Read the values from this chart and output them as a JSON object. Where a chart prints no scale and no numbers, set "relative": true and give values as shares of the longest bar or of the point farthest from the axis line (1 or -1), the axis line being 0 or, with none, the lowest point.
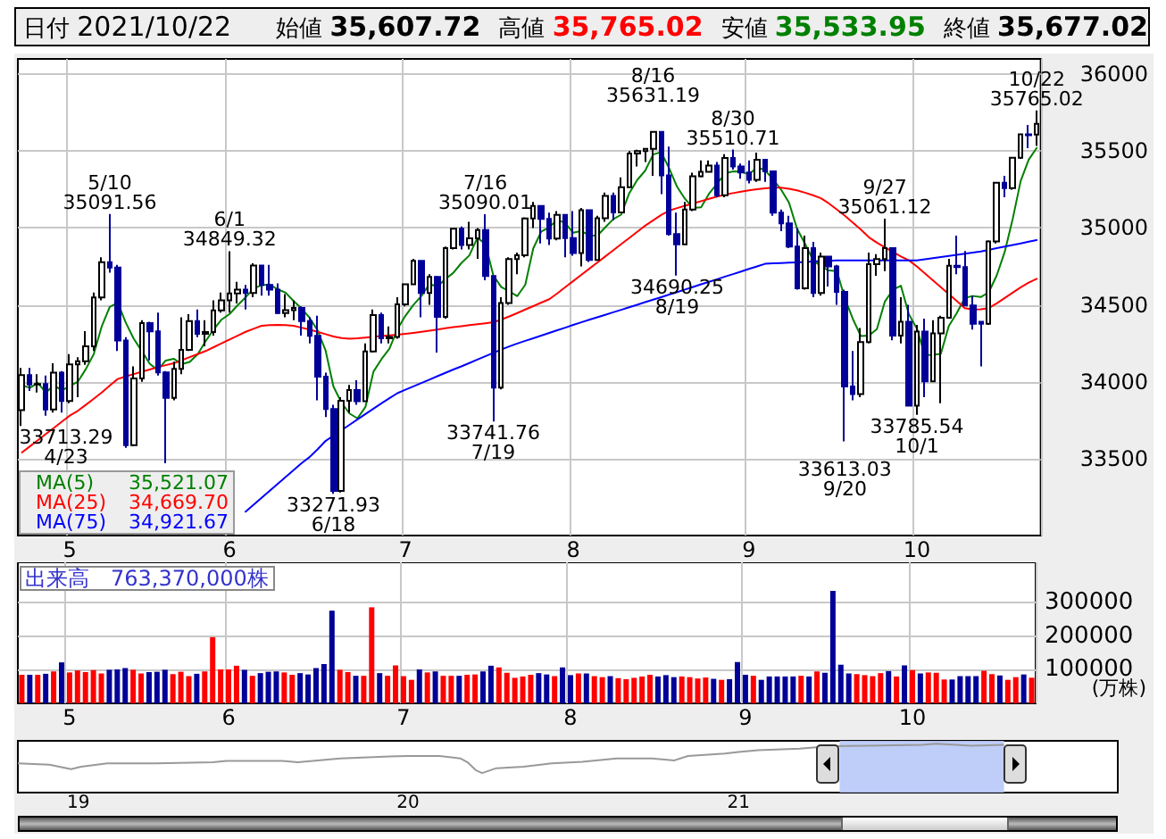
{
  "chart_data": [
    {
      "type": "candlestick",
      "categories": [
        null,
        null,
        null,
        null,
        null,
        null,
        "5",
        null,
        null,
        null,
        null,
        null,
        null,
        null,
        null,
        null,
        null,
        null,
        null,
        null,
        null,
        null,
        null,
        null,
        null,
        null,
        "6",
        null,
        null,
        null,
        null,
        null,
        null,
        null,
        null,
        null,
        null,
        null,
        null,
        null,
        null,
        null,
        null,
        null,
        null,
        null,
        null,
        null,
        "7",
        null,
        null,
        null,
        null,
        null,
        null,
        null,
        null,
        null,
        null,
        null,
        null,
        null,
        null,
        null,
        null,
        null,
        null,
        null,
        null,
        "8",
        null,
        null,
        null,
        null,
        null,
        null,
        null,
        null,
        null,
        null,
        null,
        null,
        null,
        null,
        null,
        null,
        null,
        null,
        null,
        null,
        null,
        "9",
        null,
        null,
        null,
        null,
        null,
        null,
        null,
        null,
        null,
        null,
        null,
        null,
        null,
        null,
        null,
        null,
        null,
        null,
        null,
        null,
        "10",
        null,
        null,
        null,
        null,
        null,
        null,
        null,
        null,
        null,
        null,
        null,
        null,
        null,
        null,
        null
      ],
      "ohlc": [
        [
          33816,
          34090,
          33713.29,
          34043
        ],
        [
          34043,
          34090,
          33940,
          33982
        ],
        [
          33982,
          34050,
          33930,
          33985
        ],
        [
          33985,
          34040,
          33780,
          33820
        ],
        [
          33820,
          34120,
          33800,
          34060
        ],
        [
          34060,
          34070,
          33800,
          33875
        ],
        [
          33875,
          34180,
          33860,
          34113
        ],
        [
          34113,
          34160,
          33900,
          34133
        ],
        [
          34133,
          34330,
          34110,
          34230
        ],
        [
          34230,
          34580,
          34200,
          34549
        ],
        [
          34549,
          34810,
          34530,
          34778
        ],
        [
          34778,
          35091.56,
          34710,
          34743
        ],
        [
          34743,
          34760,
          34200,
          34269
        ],
        [
          34269,
          34290,
          33570,
          33588
        ],
        [
          33588,
          34100,
          33580,
          34021
        ],
        [
          34021,
          34400,
          34000,
          34382
        ],
        [
          34382,
          34390,
          34140,
          34328
        ],
        [
          34328,
          34450,
          34040,
          34061
        ],
        [
          34061,
          34070,
          33470,
          33896
        ],
        [
          33896,
          34130,
          33880,
          34084
        ],
        [
          34084,
          34420,
          34050,
          34208
        ],
        [
          34208,
          34440,
          34200,
          34394
        ],
        [
          34394,
          34470,
          34290,
          34312
        ],
        [
          34312,
          34400,
          34230,
          34323
        ],
        [
          34323,
          34530,
          34300,
          34465
        ],
        [
          34465,
          34580,
          34450,
          34529
        ],
        [
          34529,
          34849.32,
          34450,
          34575
        ],
        [
          34575,
          34650,
          34510,
          34600
        ],
        [
          34600,
          34630,
          34470,
          34577
        ],
        [
          34577,
          34770,
          34550,
          34756
        ],
        [
          34756,
          34760,
          34560,
          34630
        ],
        [
          34630,
          34760,
          34560,
          34600
        ],
        [
          34600,
          34640,
          34440,
          34447
        ],
        [
          34447,
          34570,
          34420,
          34466
        ],
        [
          34466,
          34530,
          34400,
          34480
        ],
        [
          34480,
          34490,
          34300,
          34394
        ],
        [
          34394,
          34420,
          34250,
          34299
        ],
        [
          34299,
          34430,
          33880,
          34034
        ],
        [
          34034,
          34060,
          33770,
          33823
        ],
        [
          33823,
          33850,
          33271.93,
          33290
        ],
        [
          33290,
          33900,
          33280,
          33877
        ],
        [
          33877,
          33980,
          33800,
          33946
        ],
        [
          33946,
          34010,
          33850,
          33874
        ],
        [
          33874,
          34250,
          33870,
          34197
        ],
        [
          34197,
          34470,
          34190,
          34434
        ],
        [
          34434,
          34450,
          34250,
          34283
        ],
        [
          34283,
          34360,
          34250,
          34292
        ],
        [
          34292,
          34550,
          34280,
          34503
        ],
        [
          34503,
          34640,
          34490,
          34634
        ],
        [
          34634,
          34800,
          34630,
          34786
        ],
        [
          34786,
          34790,
          34420,
          34577
        ],
        [
          34577,
          34700,
          34500,
          34682
        ],
        [
          34682,
          34690,
          34190,
          34422
        ],
        [
          34422,
          34880,
          34410,
          34870
        ],
        [
          34870,
          35000,
          34860,
          34996
        ],
        [
          34996,
          35010,
          34860,
          34889
        ],
        [
          34889,
          35040,
          34860,
          34933
        ],
        [
          34933,
          35000,
          34800,
          34987
        ],
        [
          34987,
          35090.01,
          34660,
          34688
        ],
        [
          34688,
          34690,
          33741.76,
          33962
        ],
        [
          33962,
          34550,
          33950,
          34512
        ],
        [
          34512,
          34810,
          34500,
          34798
        ],
        [
          34798,
          34840,
          34700,
          34823
        ],
        [
          34823,
          35070,
          34810,
          35062
        ],
        [
          35062,
          35170,
          35000,
          35144
        ],
        [
          35144,
          35150,
          34900,
          35059
        ],
        [
          35059,
          35100,
          34890,
          34931
        ],
        [
          34931,
          35110,
          34920,
          35085
        ],
        [
          35085,
          35090,
          34810,
          34935
        ],
        [
          34935,
          35110,
          34820,
          34838
        ],
        [
          34838,
          35130,
          34750,
          35116
        ],
        [
          35116,
          35120,
          34780,
          34793
        ],
        [
          34793,
          35080,
          34790,
          35064
        ],
        [
          35064,
          35230,
          35040,
          35209
        ],
        [
          35209,
          35230,
          35050,
          35102
        ],
        [
          35102,
          35330,
          35100,
          35265
        ],
        [
          35265,
          35500,
          35260,
          35485
        ],
        [
          35485,
          35510,
          35400,
          35500
        ],
        [
          35500,
          35520,
          35430,
          35515
        ],
        [
          35515,
          35631.19,
          35340,
          35625
        ],
        [
          35625,
          35630,
          35220,
          35343
        ],
        [
          35343,
          35530,
          34950,
          34961
        ],
        [
          34961,
          35100,
          34690.25,
          34894
        ],
        [
          34894,
          35170,
          34890,
          35120
        ],
        [
          35120,
          35360,
          35110,
          35336
        ],
        [
          35336,
          35440,
          35330,
          35366
        ],
        [
          35366,
          35440,
          35360,
          35406
        ],
        [
          35406,
          35430,
          35200,
          35213
        ],
        [
          35213,
          35480,
          35200,
          35456
        ],
        [
          35456,
          35510.71,
          35380,
          35400
        ],
        [
          35400,
          35420,
          35320,
          35361
        ],
        [
          35361,
          35440,
          35290,
          35313
        ],
        [
          35313,
          35490,
          35300,
          35444
        ],
        [
          35444,
          35450,
          35300,
          35369
        ],
        [
          35369,
          35370,
          35080,
          35100
        ],
        [
          35100,
          35120,
          34980,
          35031
        ],
        [
          35031,
          35080,
          34870,
          34879
        ],
        [
          34879,
          35000,
          34600,
          34608
        ],
        [
          34608,
          34950,
          34600,
          34870
        ],
        [
          34870,
          34910,
          34550,
          34578
        ],
        [
          34578,
          34840,
          34560,
          34814
        ],
        [
          34814,
          34820,
          34620,
          34751
        ],
        [
          34751,
          34760,
          34500,
          34585
        ],
        [
          34585,
          34600,
          33613.03,
          33970
        ],
        [
          33970,
          34200,
          33880,
          33920
        ],
        [
          33920,
          34350,
          33900,
          34258
        ],
        [
          34258,
          34840,
          34250,
          34765
        ],
        [
          34765,
          34830,
          34690,
          34798
        ],
        [
          34798,
          35061.12,
          34720,
          34869
        ],
        [
          34869,
          34870,
          34270,
          34300
        ],
        [
          34300,
          34550,
          34250,
          34391
        ],
        [
          34391,
          34500,
          33840,
          33844
        ],
        [
          33844,
          34370,
          33785.54,
          34326
        ],
        [
          34326,
          34410,
          33900,
          34003
        ],
        [
          34003,
          34400,
          34000,
          34315
        ],
        [
          34315,
          34430,
          33860,
          34417
        ],
        [
          34417,
          34800,
          34410,
          34755
        ],
        [
          34755,
          34950,
          34700,
          34746
        ],
        [
          34746,
          34850,
          34490,
          34496
        ],
        [
          34496,
          34560,
          34340,
          34378
        ],
        [
          34390,
          34390,
          34100,
          34378
        ],
        [
          34378,
          34920,
          34370,
          34913
        ],
        [
          34913,
          35300,
          34900,
          35295
        ],
        [
          35295,
          35340,
          35200,
          35259
        ],
        [
          35259,
          35460,
          35250,
          35457
        ],
        [
          35457,
          35610,
          35450,
          35609
        ],
        [
          35609,
          35670,
          35520,
          35603
        ],
        [
          35607.72,
          35765.02,
          35533.95,
          35677.02
        ]
      ],
      "colors": [
        "#ffffff",
        "#000099",
        "#ffffff",
        "#000099",
        "#ffffff",
        "#000099",
        "#ffffff",
        "#ffffff",
        "#ffffff",
        "#ffffff",
        "#ffffff",
        "#000099",
        "#000099",
        "#000099",
        "#ffffff",
        "#ffffff",
        "#000099",
        "#000099",
        "#000099",
        "#ffffff",
        "#ffffff",
        "#ffffff",
        "#000099",
        "#ffffff",
        "#ffffff",
        "#ffffff",
        "#ffffff",
        "#ffffff",
        "#000099",
        "#ffffff",
        "#000099",
        "#000099",
        "#000099",
        "#ffffff",
        "#ffffff",
        "#000099",
        "#000099",
        "#000099",
        "#000099",
        "#000099",
        "#ffffff",
        "#ffffff",
        "#000099",
        "#ffffff",
        "#ffffff",
        "#000099",
        "#ffffff",
        "#ffffff",
        "#ffffff",
        "#ffffff",
        "#000099",
        "#ffffff",
        "#000099",
        "#ffffff",
        "#ffffff",
        "#000099",
        "#ffffff",
        "#ffffff",
        "#000099",
        "#000099",
        "#ffffff",
        "#ffffff",
        "#ffffff",
        "#ffffff",
        "#ffffff",
        "#000099",
        "#000099",
        "#ffffff",
        "#000099",
        "#000099",
        "#ffffff",
        "#000099",
        "#ffffff",
        "#ffffff",
        "#000099",
        "#ffffff",
        "#ffffff",
        "#ffffff",
        "#ffffff",
        "#ffffff",
        "#000099",
        "#000099",
        "#000099",
        "#ffffff",
        "#ffffff",
        "#ffffff",
        "#ffffff",
        "#000099",
        "#ffffff",
        "#000099",
        "#000099",
        "#000099",
        "#ffffff",
        "#000099",
        "#000099",
        "#000099",
        "#000099",
        "#000099",
        "#ffffff",
        "#000099",
        "#ffffff",
        "#000099",
        "#000099",
        "#000099",
        "#000099",
        "#ffffff",
        "#ffffff",
        "#ffffff",
        "#ffffff",
        "#000099",
        "#ffffff",
        "#000099",
        "#ffffff",
        "#000099",
        "#ffffff",
        "#ffffff",
        "#ffffff",
        "#000099",
        "#000099",
        "#000099",
        "#000099",
        "#ffffff",
        "#ffffff",
        "#000099",
        "#ffffff",
        "#ffffff",
        "#000099",
        "#ffffff"
      ],
      "series": [
        {
          "type": "line",
          "name": "MA(5) 35,521.07",
          "color": "#008000",
          "values": [
            33979,
            33960,
            33993,
            33929,
            33978,
            33944,
            33971,
            34000,
            34082,
            34180,
            34361,
            34487,
            34514,
            34385,
            34280,
            34201,
            34118,
            34076,
            34138,
            34150,
            34115,
            34129,
            34179,
            34264,
            34340,
            34405,
            34441,
            34498,
            34549,
            34607,
            34628,
            34633,
            34602,
            34580,
            34525,
            34477,
            34417,
            34335,
            34206,
            33968,
            33865,
            33794,
            33762,
            33837,
            34066,
            34147,
            34216,
            34342,
            34429,
            34500,
            34558,
            34636,
            34620,
            34667,
            34709,
            34772,
            34822,
            34935,
            34899,
            34692,
            34616,
            34589,
            34557,
            34631,
            34868,
            34977,
            35004,
            35056,
            35031,
            34970,
            34981,
            34953,
            34949,
            35004,
            35057,
            35087,
            35225,
            35312,
            35373,
            35478,
            35494,
            35389,
            35268,
            35189,
            35131,
            35135,
            35224,
            35288,
            35355,
            35368,
            35367,
            35349,
            35395,
            35377,
            35317,
            35251,
            35165,
            34997,
            34898,
            34793,
            34750,
            34724,
            34720,
            34540,
            34408,
            34297,
            34300,
            34342,
            34522,
            34598,
            34625,
            34440,
            34346,
            34173,
            34176,
            34181,
            34363,
            34447,
            34546,
            34558,
            34551,
            34582,
            34692,
            34845,
            35060,
            35307,
            35445,
            35521.07
          ]
        },
        {
          "type": "line",
          "name": "MA(25) 34,669.70",
          "color": "#ff0000",
          "values": [
            33540,
            33580,
            33620,
            33660,
            33700,
            33740,
            33780,
            33811,
            33850,
            33890,
            33930,
            33975,
            34018,
            34035,
            34050,
            34065,
            34080,
            34095,
            34108,
            34120,
            34140,
            34160,
            34180,
            34200,
            34225,
            34250,
            34275,
            34300,
            34325,
            34345,
            34364,
            34368,
            34370,
            34368,
            34364,
            34352,
            34340,
            34325,
            34310,
            34295,
            34285,
            34280,
            34283,
            34288,
            34293,
            34298,
            34302,
            34306,
            34312,
            34318,
            34325,
            34332,
            34340,
            34348,
            34355,
            34362,
            34368,
            34374,
            34380,
            34387,
            34405,
            34425,
            34447,
            34470,
            34492,
            34515,
            34537,
            34575,
            34615,
            34655,
            34695,
            34735,
            34775,
            34815,
            34855,
            34895,
            34935,
            34975,
            35015,
            35050,
            35085,
            35113,
            35130,
            35145,
            35160,
            35175,
            35190,
            35205,
            35217,
            35227,
            35236,
            35245,
            35252,
            35258,
            35263,
            35262,
            35255,
            35245,
            35230,
            35213,
            35194,
            35160,
            35120,
            35080,
            35035,
            34990,
            34940,
            34905,
            34875,
            34845,
            34815,
            34790,
            34750,
            34705,
            34660,
            34615,
            34570,
            34525,
            34479,
            34470,
            34472,
            34479,
            34510,
            34545,
            34580,
            34615,
            34645,
            34669.7
          ]
        },
        {
          "type": "line",
          "name": "MA(75) 34,921.67",
          "color": "#0000ff",
          "values": [
            null,
            null,
            null,
            null,
            null,
            null,
            null,
            null,
            null,
            null,
            null,
            null,
            null,
            null,
            null,
            null,
            null,
            null,
            null,
            null,
            null,
            null,
            null,
            null,
            null,
            null,
            null,
            null,
            33155,
            33200,
            33245,
            33290,
            33335,
            33380,
            33425,
            33470,
            33510,
            33560,
            33615,
            33650,
            33685,
            33720,
            33755,
            33790,
            33825,
            33860,
            33893,
            33926,
            33948,
            33970,
            33992,
            34014,
            34036,
            34058,
            34080,
            34100,
            34122,
            34144,
            34166,
            34188,
            34210,
            34230,
            34249,
            34266,
            34283,
            34300,
            34318,
            34335,
            34352,
            34370,
            34387,
            34403,
            34419,
            34435,
            34452,
            34468,
            34485,
            34501,
            34518,
            34534,
            34550,
            34567,
            34583,
            34600,
            34617,
            34634,
            34650,
            34667,
            34684,
            34700,
            34717,
            34734,
            34750,
            34767,
            34770,
            34772,
            34775,
            34777,
            34780,
            34782,
            34785,
            34787,
            34790,
            34790,
            34790,
            34790,
            34790,
            34790,
            34790,
            34790,
            34790,
            34790,
            34790,
            34797,
            34804,
            34811,
            34819,
            34826,
            34833,
            34840,
            34848,
            34858,
            34869,
            34880,
            34890,
            34900,
            34911,
            34921.67
          ]
        }
      ],
      "ylim": [
        33000,
        36100
      ],
      "yticks": [
        33500,
        34000,
        34500,
        35000,
        35500,
        36000
      ],
      "grid": true,
      "legend": "bottom left",
      "marker": "none",
      "annotations": [
        "日付 2021/10/22",
        "始値 35,607.72",
        "高値 35,765.02",
        "安値 35,533.95",
        "終値 35,677.02",
        {
          "text": "33713.29\n4/23",
          "y": 33713.29
        },
        {
          "text": "5/10\n35091.56",
          "y": 35091.56
        },
        {
          "text": "6/1\n34849.32",
          "y": 34849.32
        },
        {
          "text": "33271.93\n6/18",
          "y": 33271.93
        },
        {
          "text": "7/16\n35090.01",
          "y": 35090.01
        },
        {
          "text": "33741.76\n7/19",
          "y": 33741.76
        },
        {
          "text": "8/16\n35631.19",
          "y": 35631.19
        },
        {
          "text": "34690.25\n8/19",
          "y": 34690.25
        },
        {
          "text": "8/30\n35510.71",
          "y": 35510.71
        },
        {
          "text": "33613.03\n9/20",
          "y": 33613.03
        },
        {
          "text": "9/27\n35061.12",
          "y": 35061.12
        },
        {
          "text": "33785.54\n10/1",
          "y": 33785.54
        },
        {
          "text": "10/22\n35765.02",
          "y": 35765.02
        }
      ]
    },
    {
      "type": "bar",
      "title": "出来高　763,370,000株",
      "ylabel": "(万株)",
      "categories": [
        null,
        null,
        null,
        null,
        null,
        null,
        "5",
        null,
        null,
        null,
        null,
        null,
        null,
        null,
        null,
        null,
        null,
        null,
        null,
        null,
        null,
        null,
        null,
        null,
        null,
        null,
        "6",
        null,
        null,
        null,
        null,
        null,
        null,
        null,
        null,
        null,
        null,
        null,
        null,
        null,
        null,
        null,
        null,
        null,
        null,
        null,
        null,
        null,
        "7",
        null,
        null,
        null,
        null,
        null,
        null,
        null,
        null,
        null,
        null,
        null,
        null,
        null,
        null,
        null,
        null,
        null,
        null,
        null,
        null,
        "8",
        null,
        null,
        null,
        null,
        null,
        null,
        null,
        null,
        null,
        null,
        null,
        null,
        null,
        null,
        null,
        null,
        null,
        null,
        null,
        null,
        null,
        "9",
        null,
        null,
        null,
        null,
        null,
        null,
        null,
        null,
        null,
        null,
        null,
        null,
        null,
        null,
        null,
        null,
        null,
        null,
        null,
        null,
        "10",
        null,
        null,
        null,
        null,
        null,
        null,
        null,
        null,
        null,
        null,
        null,
        null,
        null,
        null,
        null
      ],
      "values": [
        85000,
        85000,
        85000,
        88000,
        95000,
        122000,
        92000,
        98000,
        93000,
        99000,
        89000,
        100000,
        101000,
        105000,
        100000,
        89000,
        93000,
        94000,
        100000,
        87000,
        94000,
        81000,
        88000,
        95000,
        197000,
        101000,
        101000,
        112000,
        100000,
        82000,
        90000,
        94000,
        95000,
        92000,
        85000,
        90000,
        86000,
        105000,
        117000,
        276000,
        100000,
        93000,
        82000,
        82000,
        286000,
        90000,
        82000,
        113000,
        81000,
        70000,
        101000,
        92000,
        95000,
        82000,
        82000,
        82000,
        85000,
        86000,
        95000,
        112000,
        107000,
        91000,
        76000,
        80000,
        85000,
        90000,
        86000,
        81000,
        107000,
        84000,
        89000,
        89000,
        81000,
        78000,
        81000,
        75000,
        72000,
        76000,
        80000,
        85000,
        80000,
        84000,
        78000,
        80000,
        78000,
        74000,
        77000,
        73000,
        70000,
        72000,
        123000,
        85000,
        82000,
        70000,
        80000,
        80000,
        80000,
        80000,
        82000,
        80000,
        95000,
        91000,
        335000,
        115000,
        89000,
        87000,
        84000,
        81000,
        90000,
        96000,
        80000,
        113000,
        99000,
        89000,
        92000,
        91000,
        71000,
        71000,
        81000,
        81000,
        81000,
        97000,
        87000,
        83000,
        70000,
        78000,
        86000,
        76337
      ],
      "colors": [
        "#ff0000",
        "#000099",
        "#ff0000",
        "#000099",
        "#ff0000",
        "#000099",
        "#ff0000",
        "#ff0000",
        "#ff0000",
        "#ff0000",
        "#ff0000",
        "#000099",
        "#000099",
        "#000099",
        "#ff0000",
        "#ff0000",
        "#000099",
        "#000099",
        "#000099",
        "#ff0000",
        "#ff0000",
        "#ff0000",
        "#000099",
        "#ff0000",
        "#ff0000",
        "#ff0000",
        "#ff0000",
        "#ff0000",
        "#000099",
        "#ff0000",
        "#000099",
        "#000099",
        "#000099",
        "#ff0000",
        "#ff0000",
        "#000099",
        "#000099",
        "#000099",
        "#000099",
        "#000099",
        "#ff0000",
        "#ff0000",
        "#000099",
        "#ff0000",
        "#ff0000",
        "#000099",
        "#ff0000",
        "#ff0000",
        "#ff0000",
        "#ff0000",
        "#000099",
        "#ff0000",
        "#000099",
        "#ff0000",
        "#ff0000",
        "#000099",
        "#ff0000",
        "#ff0000",
        "#000099",
        "#000099",
        "#ff0000",
        "#ff0000",
        "#ff0000",
        "#ff0000",
        "#ff0000",
        "#000099",
        "#000099",
        "#ff0000",
        "#000099",
        "#000099",
        "#ff0000",
        "#000099",
        "#ff0000",
        "#ff0000",
        "#000099",
        "#ff0000",
        "#ff0000",
        "#ff0000",
        "#ff0000",
        "#ff0000",
        "#000099",
        "#000099",
        "#000099",
        "#ff0000",
        "#ff0000",
        "#ff0000",
        "#ff0000",
        "#000099",
        "#ff0000",
        "#000099",
        "#000099",
        "#000099",
        "#ff0000",
        "#000099",
        "#000099",
        "#000099",
        "#000099",
        "#000099",
        "#ff0000",
        "#000099",
        "#ff0000",
        "#000099",
        "#000099",
        "#000099",
        "#000099",
        "#ff0000",
        "#ff0000",
        "#ff0000",
        "#ff0000",
        "#000099",
        "#ff0000",
        "#000099",
        "#ff0000",
        "#000099",
        "#ff0000",
        "#ff0000",
        "#ff0000",
        "#000099",
        "#000099",
        "#000099",
        "#000099",
        "#ff0000",
        "#ff0000",
        "#000099",
        "#ff0000",
        "#ff0000",
        "#000099",
        "#ff0000"
      ],
      "ylim": [
        0,
        420000
      ],
      "yticks": [
        100000,
        200000,
        300000
      ],
      "grid": true
    },
    {
      "type": "line",
      "relative": true,
      "color": "#999999",
      "x": [
        "2018-10-26",
        "2018-11-30",
        "2018-12-24",
        "2019-01-04",
        "2019-02-02",
        "2019-03-28",
        "2019-05-30",
        "2019-06-14",
        "2019-08-15",
        "2019-09-01",
        "2019-10-18",
        "2019-12-12",
        "2020-01-01",
        "2020-02-05",
        "2020-02-28",
        "2020-03-07",
        "2020-03-16",
        "2020-03-23",
        "2020-04-08",
        "2020-05-08",
        "2020-06-08",
        "2020-07-12",
        "2020-08-19",
        "2020-09-27",
        "2020-10-22",
        "2020-11-06",
        "2020-12-17",
        "2021-01-01",
        "2021-01-23",
        "2021-03-10",
        "2021-04-12",
        "2021-05-22",
        "2021-07-23",
        "2021-08-08",
        "2021-09-16",
        "2021-10-22"
      ],
      "values": [
        0.6,
        0.57,
        0.48,
        0.53,
        0.6,
        0.6,
        0.62,
        0.65,
        0.65,
        0.62,
        0.7,
        0.74,
        0.75,
        0.75,
        0.7,
        0.62,
        0.46,
        0.4,
        0.5,
        0.53,
        0.6,
        0.63,
        0.7,
        0.7,
        0.66,
        0.75,
        0.8,
        0.83,
        0.87,
        0.9,
        0.95,
        0.96,
        0.98,
        1,
        0.96,
        0.98
      ],
      "xlim": [
        "2018-10-26",
        "2022-02-25"
      ],
      "xticks": [
        {
          "value": "2019-01-01",
          "label": "19"
        },
        {
          "value": "2020-01-01",
          "label": "20"
        },
        {
          "value": "2021-01-01",
          "label": "21"
        }
      ],
      "bands": [
        {
          "axis": "x",
          "from": "2021-04-23",
          "to": "2021-10-22",
          "color": "#b8c8f8"
        }
      ]
    }
  ]
}
